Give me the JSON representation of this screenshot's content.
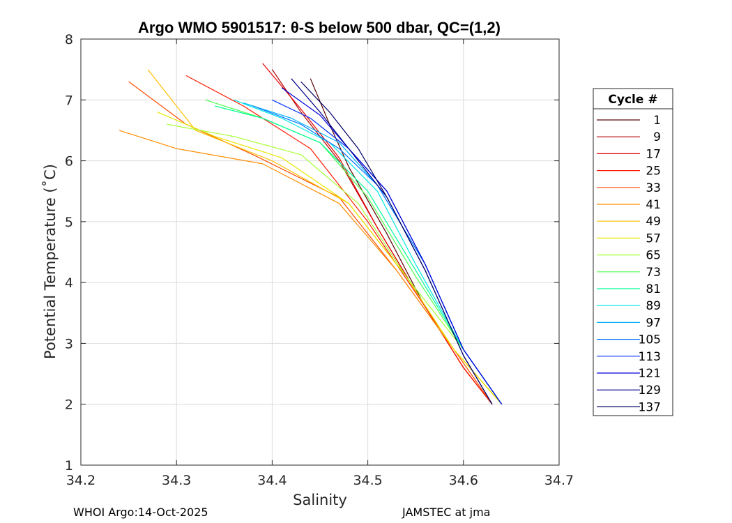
{
  "chart_data": {
    "type": "line",
    "title": "Argo WMO 5901517: θ-S below 500 dbar,  QC=(1,2)",
    "xlabel": "Salinity",
    "ylabel": "Potential Temperature (˚C)",
    "xlim": [
      34.2,
      34.7
    ],
    "ylim": [
      1,
      8
    ],
    "xticks": [
      "34.2",
      "34.3",
      "34.4",
      "34.5",
      "34.6",
      "34.7"
    ],
    "yticks": [
      "1",
      "2",
      "3",
      "4",
      "5",
      "6",
      "7",
      "8"
    ],
    "grid": true,
    "legend": {
      "title": "Cycle #",
      "placement": "outside-right",
      "entries": [
        {
          "label": "1",
          "color": "#5a0000"
        },
        {
          "label": "9",
          "color": "#b30000"
        },
        {
          "label": "17",
          "color": "#e60000"
        },
        {
          "label": "25",
          "color": "#ff1a00"
        },
        {
          "label": "33",
          "color": "#ff4d00"
        },
        {
          "label": "41",
          "color": "#ff8c00"
        },
        {
          "label": "49",
          "color": "#ffbf00"
        },
        {
          "label": "57",
          "color": "#e6e600"
        },
        {
          "label": "65",
          "color": "#a6ff33"
        },
        {
          "label": "73",
          "color": "#4dff4d"
        },
        {
          "label": "81",
          "color": "#00ff99"
        },
        {
          "label": "89",
          "color": "#00e6e6"
        },
        {
          "label": "97",
          "color": "#00b3ff"
        },
        {
          "label": "105",
          "color": "#0073ff"
        },
        {
          "label": "113",
          "color": "#0033ff"
        },
        {
          "label": "121",
          "color": "#0000d9"
        },
        {
          "label": "129",
          "color": "#00008c"
        },
        {
          "label": "137",
          "color": "#000066"
        }
      ]
    },
    "series": [
      {
        "name": "1",
        "color": "#5a0000",
        "x": [
          34.44,
          34.46,
          34.48,
          34.52,
          34.56,
          34.6,
          34.63
        ],
        "y": [
          7.35,
          6.6,
          5.9,
          4.8,
          3.6,
          2.6,
          2.0
        ]
      },
      {
        "name": "9",
        "color": "#b30000",
        "x": [
          34.4,
          34.43,
          34.47,
          34.51,
          34.56,
          34.6,
          34.63
        ],
        "y": [
          7.5,
          6.8,
          6.0,
          4.9,
          3.6,
          2.6,
          2.0
        ]
      },
      {
        "name": "17",
        "color": "#e60000",
        "x": [
          34.39,
          34.43,
          34.47,
          34.51,
          34.56,
          34.6,
          34.63
        ],
        "y": [
          7.6,
          6.85,
          6.05,
          4.9,
          3.6,
          2.6,
          2.0
        ]
      },
      {
        "name": "25",
        "color": "#ff1a00",
        "x": [
          34.31,
          34.37,
          34.44,
          34.5,
          34.56,
          34.6,
          34.63
        ],
        "y": [
          7.4,
          6.9,
          6.2,
          5.0,
          3.6,
          2.6,
          2.0
        ]
      },
      {
        "name": "33",
        "color": "#ff4d00",
        "x": [
          34.25,
          34.31,
          34.38,
          34.47,
          34.53,
          34.59,
          34.63
        ],
        "y": [
          7.3,
          6.6,
          6.1,
          5.4,
          4.2,
          2.9,
          2.0
        ]
      },
      {
        "name": "41",
        "color": "#ff8c00",
        "x": [
          34.24,
          34.3,
          34.39,
          34.47,
          34.53,
          34.59,
          34.64
        ],
        "y": [
          6.5,
          6.2,
          5.95,
          5.3,
          4.2,
          2.9,
          2.0
        ]
      },
      {
        "name": "49",
        "color": "#ffbf00",
        "x": [
          34.27,
          34.32,
          34.4,
          34.48,
          34.54,
          34.59,
          34.64
        ],
        "y": [
          7.5,
          6.5,
          6.0,
          5.3,
          4.1,
          2.9,
          2.0
        ]
      },
      {
        "name": "57",
        "color": "#e6e600",
        "x": [
          34.28,
          34.34,
          34.41,
          34.48,
          34.54,
          34.59,
          34.64
        ],
        "y": [
          6.8,
          6.4,
          6.05,
          5.3,
          4.1,
          2.9,
          2.0
        ]
      },
      {
        "name": "65",
        "color": "#a6ff33",
        "x": [
          34.29,
          34.36,
          34.43,
          34.49,
          34.54,
          34.6,
          34.64
        ],
        "y": [
          6.6,
          6.4,
          6.1,
          5.3,
          4.1,
          2.9,
          2.0
        ]
      },
      {
        "name": "73",
        "color": "#4dff4d",
        "x": [
          34.33,
          34.39,
          34.45,
          34.5,
          34.55,
          34.6,
          34.64
        ],
        "y": [
          7.0,
          6.7,
          6.3,
          5.4,
          4.1,
          2.9,
          2.0
        ]
      },
      {
        "name": "81",
        "color": "#00ff99",
        "x": [
          34.34,
          34.39,
          34.45,
          34.5,
          34.55,
          34.6,
          34.64
        ],
        "y": [
          6.9,
          6.7,
          6.3,
          5.5,
          4.2,
          2.9,
          2.0
        ]
      },
      {
        "name": "89",
        "color": "#00e6e6",
        "x": [
          34.36,
          34.41,
          34.46,
          34.51,
          34.55,
          34.6,
          34.64
        ],
        "y": [
          7.0,
          6.7,
          6.3,
          5.5,
          4.3,
          2.9,
          2.0
        ]
      },
      {
        "name": "97",
        "color": "#00b3ff",
        "x": [
          34.37,
          34.42,
          34.47,
          34.51,
          34.56,
          34.6,
          34.64
        ],
        "y": [
          6.95,
          6.7,
          6.3,
          5.6,
          4.3,
          2.9,
          2.0
        ]
      },
      {
        "name": "105",
        "color": "#0073ff",
        "x": [
          34.38,
          34.43,
          34.47,
          34.51,
          34.56,
          34.6,
          34.64
        ],
        "y": [
          6.9,
          6.6,
          6.2,
          5.6,
          4.3,
          2.9,
          2.0
        ]
      },
      {
        "name": "113",
        "color": "#0033ff",
        "x": [
          34.4,
          34.44,
          34.48,
          34.52,
          34.56,
          34.6,
          34.64
        ],
        "y": [
          7.0,
          6.7,
          6.2,
          5.5,
          4.3,
          2.9,
          2.0
        ]
      },
      {
        "name": "121",
        "color": "#0000d9",
        "x": [
          34.41,
          34.45,
          34.48,
          34.52,
          34.56,
          34.6,
          34.64
        ],
        "y": [
          7.2,
          6.75,
          6.2,
          5.5,
          4.3,
          2.9,
          2.0
        ]
      },
      {
        "name": "129",
        "color": "#00008c",
        "x": [
          34.42,
          34.45,
          34.48,
          34.52,
          34.56,
          34.6,
          34.63
        ],
        "y": [
          7.35,
          6.8,
          6.2,
          5.4,
          4.2,
          2.8,
          2.0
        ]
      },
      {
        "name": "137",
        "color": "#000066",
        "x": [
          34.43,
          34.46,
          34.49,
          34.52,
          34.56,
          34.6,
          34.63
        ],
        "y": [
          7.3,
          6.8,
          6.2,
          5.4,
          4.2,
          2.8,
          2.0
        ]
      }
    ]
  },
  "footer": {
    "left": "WHOI Argo:14-Oct-2025",
    "right": "JAMSTEC at jma"
  }
}
